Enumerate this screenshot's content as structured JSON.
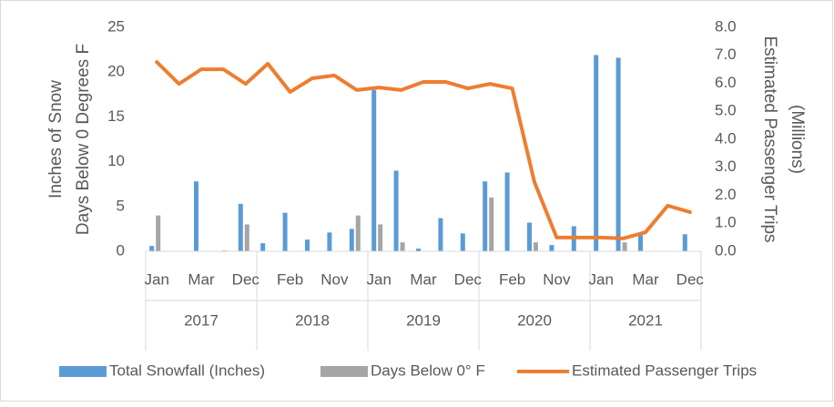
{
  "chart_data": {
    "type": "bar-line",
    "y_label_lines": [
      "Inches of Snow",
      "Days Below 0 Degrees F"
    ],
    "y2_label_lines": [
      "Estimated Passenger Trips",
      "(Millions)"
    ],
    "categories": [
      "Jan",
      null,
      "Mar",
      null,
      "Dec",
      null,
      "Feb",
      null,
      "Nov",
      null,
      "Jan",
      null,
      "Mar",
      null,
      "Dec",
      null,
      "Feb",
      null,
      "Nov",
      null,
      "Jan",
      null,
      "Mar",
      null,
      "Dec"
    ],
    "year_groups": [
      "2017",
      "2018",
      "2019",
      "2020",
      "2021"
    ],
    "series": [
      {
        "name": "Total Snowfall (Inches)",
        "type": "bar",
        "color": "#5b9bd5",
        "values": [
          0.6,
          0,
          7.8,
          0,
          5.3,
          0.9,
          4.3,
          1.3,
          2.1,
          2.5,
          18.0,
          9.0,
          0.3,
          3.7,
          2.0,
          7.8,
          8.8,
          3.2,
          0.7,
          2.8,
          21.9,
          21.6,
          1.8,
          0,
          1.9
        ]
      },
      {
        "name": "Days Below 0° F",
        "type": "bar",
        "color": "#a5a5a5",
        "values": [
          4.0,
          0,
          0,
          0.1,
          3.0,
          0,
          0,
          0,
          0,
          4.0,
          3.0,
          1.0,
          0,
          0,
          0,
          6.0,
          0,
          1.0,
          0,
          0,
          0,
          1.0,
          0,
          0,
          0
        ]
      },
      {
        "name": "Estimated Passenger Trips",
        "type": "line",
        "axis": "y2",
        "color": "#ed7d31",
        "values": [
          6.76,
          5.98,
          6.5,
          6.5,
          5.98,
          6.7,
          5.69,
          6.18,
          6.28,
          5.76,
          5.85,
          5.76,
          6.05,
          6.05,
          5.82,
          5.98,
          5.82,
          2.47,
          0.49,
          0.49,
          0.49,
          0.46,
          0.68,
          1.63,
          1.4
        ]
      }
    ],
    "ylim": [
      0,
      25
    ],
    "yticks": [
      0,
      5,
      10,
      15,
      20,
      25
    ],
    "y2lim": [
      0,
      8
    ],
    "y2ticks": [
      {
        "value": 0,
        "label": "0.0"
      },
      {
        "value": 1,
        "label": "1.0"
      },
      {
        "value": 2,
        "label": "2.0"
      },
      {
        "value": 3,
        "label": "3.0"
      },
      {
        "value": 4,
        "label": "4.0"
      },
      {
        "value": 5,
        "label": "5.0"
      },
      {
        "value": 6,
        "label": "6.0"
      },
      {
        "value": 7,
        "label": "7.0"
      },
      {
        "value": 8,
        "label": "8.0"
      }
    ],
    "legend": "bottom",
    "grid": false
  }
}
